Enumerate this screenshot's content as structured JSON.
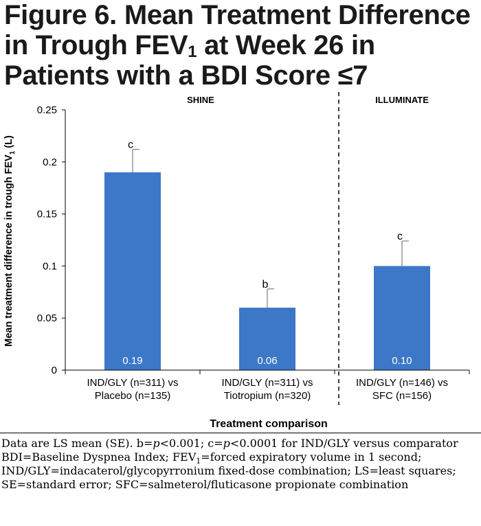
{
  "title": {
    "line1": "Figure 6. Mean Treatment Difference",
    "line2_pre": "in Trough FEV",
    "line2_sub": "1",
    "line2_post": " at Week 26 in",
    "line3": "Patients with a BDI Score ≤7"
  },
  "chart_data": {
    "type": "bar",
    "categories": [
      [
        "IND/GLY (n=311) vs",
        "Placebo (n=135)"
      ],
      [
        "IND/GLY (n=311) vs",
        "Tiotropium (n=320)"
      ],
      [
        "IND/GLY (n=146) vs",
        "SFC (n=156)"
      ]
    ],
    "values": [
      0.19,
      0.06,
      0.1
    ],
    "value_labels": [
      "0.19",
      "0.06",
      "0.10"
    ],
    "error_upper": [
      0.212,
      0.078,
      0.124
    ],
    "significance": [
      "c",
      "b",
      "c"
    ],
    "groups": [
      {
        "label": "SHINE",
        "categories": [
          0,
          1
        ]
      },
      {
        "label": "ILLUMINATE",
        "categories": [
          2
        ]
      }
    ],
    "xlabel": "Treatment comparison",
    "ylabel_pre": "Mean treatment difference in trough FEV",
    "ylabel_sub": "1",
    "ylabel_post": " (L)",
    "yticks": [
      "0",
      "0.05",
      "0.1",
      "0.15",
      "0.2",
      "0.25"
    ],
    "ylim": [
      0,
      0.25
    ],
    "bar_color": "#3d78c8",
    "error_color": "#7f7f7f",
    "grid": false,
    "divider": "dashed between SHINE and ILLUMINATE"
  },
  "footnotes": {
    "line1_a": "Data are LS mean (SE). b=",
    "line1_p1": "p",
    "line1_b": "<0.001; c=",
    "line1_p2": "p",
    "line1_c": "<0.0001 for IND/GLY versus comparator",
    "line2_pre": "BDI=Baseline Dyspnea Index; FEV",
    "line2_sub": "1",
    "line2_post": "=forced expiratory volume in 1 second; IND/GLY=indacaterol/glycopyrronium fixed-dose combination; LS=least squares; SE=standard error; SFC=salmeterol/fluticasone propionate combination"
  }
}
